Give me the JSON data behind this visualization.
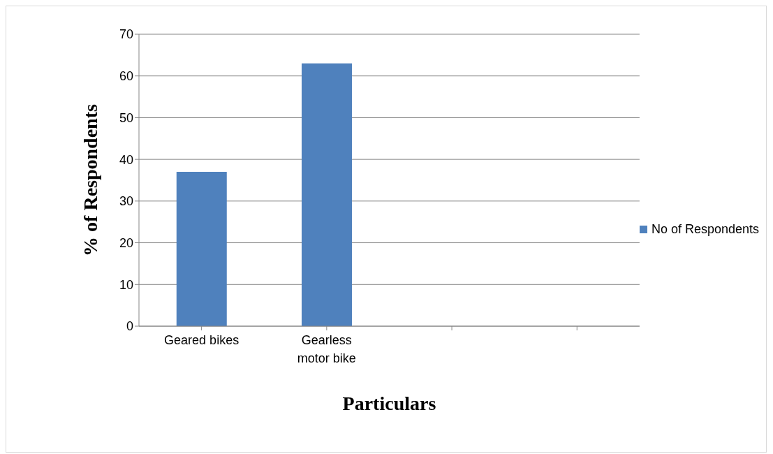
{
  "chart_data": {
    "type": "bar",
    "xlabel": "Particulars",
    "ylabel": "% of Respondents",
    "categories": [
      "Geared bikes",
      "Gearless motor bike",
      null,
      null
    ],
    "series": [
      {
        "name": "No of Respondents",
        "color": "#4f81bd",
        "values": [
          37,
          63,
          null,
          null
        ]
      }
    ],
    "ylim": [
      0,
      70
    ],
    "yticks": [
      0,
      10,
      20,
      30,
      40,
      50,
      60,
      70
    ],
    "grid": "y",
    "legend": "right"
  }
}
